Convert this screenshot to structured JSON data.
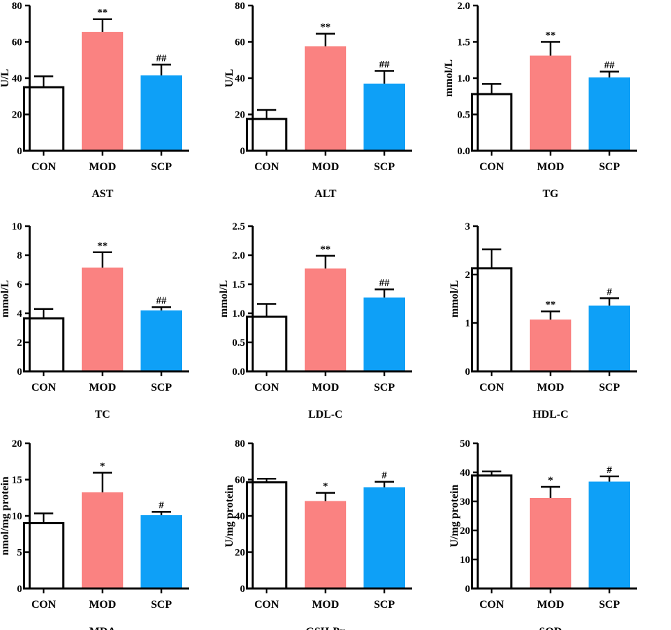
{
  "colors": {
    "CON": "#ffffff",
    "MOD": "#fa8281",
    "SCP": "#0ea0f7",
    "axis": "#000000"
  },
  "chart_data": [
    {
      "type": "bar",
      "title": "AST",
      "ylabel": "U/L",
      "categories": [
        "CON",
        "MOD",
        "SCP"
      ],
      "values": [
        35,
        65.5,
        41.5
      ],
      "errors": [
        6,
        7,
        6
      ],
      "significance": [
        "",
        "**",
        "##"
      ],
      "ylim": [
        0,
        80
      ],
      "yticks": [
        0,
        20,
        40,
        60,
        80
      ],
      "ytick_labels": [
        "0",
        "20",
        "40",
        "60",
        "80"
      ]
    },
    {
      "type": "bar",
      "title": "ALT",
      "ylabel": "U/L",
      "categories": [
        "CON",
        "MOD",
        "SCP"
      ],
      "values": [
        17.5,
        57.5,
        37
      ],
      "errors": [
        5,
        7,
        7
      ],
      "significance": [
        "",
        "**",
        "##"
      ],
      "ylim": [
        0,
        80
      ],
      "yticks": [
        0,
        20,
        40,
        60,
        80
      ],
      "ytick_labels": [
        "0",
        "20",
        "40",
        "60",
        "80"
      ]
    },
    {
      "type": "bar",
      "title": "TG",
      "ylabel": "mmol/L",
      "categories": [
        "CON",
        "MOD",
        "SCP"
      ],
      "values": [
        0.78,
        1.31,
        1.01
      ],
      "errors": [
        0.14,
        0.19,
        0.08
      ],
      "significance": [
        "",
        "**",
        "##"
      ],
      "ylim": [
        0,
        2.0
      ],
      "yticks": [
        0,
        0.5,
        1.0,
        1.5,
        2.0
      ],
      "ytick_labels": [
        "0.0",
        "0.5",
        "1.0",
        "1.5",
        "2.0"
      ]
    },
    {
      "type": "bar",
      "title": "TC",
      "ylabel": "mmol/L",
      "categories": [
        "CON",
        "MOD",
        "SCP"
      ],
      "values": [
        3.65,
        7.15,
        4.2
      ],
      "errors": [
        0.65,
        1.05,
        0.22
      ],
      "significance": [
        "",
        "**",
        "##"
      ],
      "ylim": [
        0,
        10
      ],
      "yticks": [
        0,
        2,
        4,
        6,
        8,
        10
      ],
      "ytick_labels": [
        "0",
        "2",
        "4",
        "6",
        "8",
        "10"
      ]
    },
    {
      "type": "bar",
      "title": "LDL-C",
      "ylabel": "mmol/L",
      "categories": [
        "CON",
        "MOD",
        "SCP"
      ],
      "values": [
        0.94,
        1.77,
        1.27
      ],
      "errors": [
        0.22,
        0.22,
        0.14
      ],
      "significance": [
        "",
        "**",
        "##"
      ],
      "ylim": [
        0,
        2.5
      ],
      "yticks": [
        0,
        0.5,
        1.0,
        1.5,
        2.0,
        2.5
      ],
      "ytick_labels": [
        "0.0",
        "0.5",
        "1.0",
        "1.5",
        "2.0",
        "2.5"
      ]
    },
    {
      "type": "bar",
      "title": "HDL-C",
      "ylabel": "mmol/L",
      "categories": [
        "CON",
        "MOD",
        "SCP"
      ],
      "values": [
        2.13,
        1.07,
        1.36
      ],
      "errors": [
        0.39,
        0.17,
        0.15
      ],
      "significance": [
        "",
        "**",
        "#"
      ],
      "ylim": [
        0,
        3
      ],
      "yticks": [
        0,
        1,
        2,
        3
      ],
      "ytick_labels": [
        "0",
        "1",
        "2",
        "3"
      ]
    },
    {
      "type": "bar",
      "title": "MDA",
      "ylabel": "nmol/mg protein",
      "categories": [
        "CON",
        "MOD",
        "SCP"
      ],
      "values": [
        9,
        13.25,
        10.1
      ],
      "errors": [
        1.35,
        2.7,
        0.45
      ],
      "significance": [
        "",
        "*",
        "#"
      ],
      "ylim": [
        0,
        20
      ],
      "yticks": [
        0,
        5,
        10,
        15,
        20
      ],
      "ytick_labels": [
        "0",
        "5",
        "10",
        "15",
        "20"
      ]
    },
    {
      "type": "bar",
      "title": "GSH-Px",
      "ylabel": "U/mg protein",
      "categories": [
        "CON",
        "MOD",
        "SCP"
      ],
      "values": [
        58.5,
        48.2,
        55.8
      ],
      "errors": [
        2,
        4.5,
        3
      ],
      "significance": [
        "",
        "*",
        "#"
      ],
      "ylim": [
        0,
        80
      ],
      "yticks": [
        0,
        20,
        40,
        60,
        80
      ],
      "ytick_labels": [
        "0",
        "20",
        "40",
        "60",
        "80"
      ]
    },
    {
      "type": "bar",
      "title": "SOD",
      "ylabel": "U/mg protein",
      "categories": [
        "CON",
        "MOD",
        "SCP"
      ],
      "values": [
        38.9,
        31.2,
        36.8
      ],
      "errors": [
        1.4,
        3.8,
        1.8
      ],
      "significance": [
        "",
        "*",
        "#"
      ],
      "ylim": [
        0,
        50
      ],
      "yticks": [
        0,
        10,
        20,
        30,
        40,
        50
      ],
      "ytick_labels": [
        "0",
        "10",
        "20",
        "30",
        "40",
        "50"
      ]
    }
  ]
}
